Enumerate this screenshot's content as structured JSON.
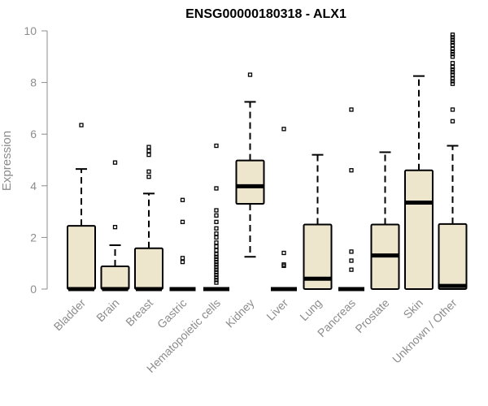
{
  "chart_data": {
    "type": "boxplot",
    "title": "ENSG00000180318 - ALX1",
    "ylabel": "Expression",
    "xlabel": "",
    "ylim": [
      0,
      10
    ],
    "yticks": [
      0,
      2,
      4,
      6,
      8,
      10
    ],
    "box_fill": "#ede6cd",
    "stroke_color": "#000000",
    "axis_color": "#8c8c8c",
    "categories": [
      "Bladder",
      "Brain",
      "Breast",
      "Gastric",
      "Hematopoietic cells",
      "Kidney",
      "Liver",
      "Lung",
      "Pancreas",
      "Prostate",
      "Skin",
      "Unknown / Other"
    ],
    "boxes": [
      {
        "name": "Bladder",
        "q1": 0,
        "median": 0,
        "q3": 2.45,
        "whisker_low": 0,
        "whisker_high": 4.65,
        "outliers": [
          6.35
        ]
      },
      {
        "name": "Brain",
        "q1": 0,
        "median": 0,
        "q3": 0.88,
        "whisker_low": 0,
        "whisker_high": 1.7,
        "outliers": [
          2.4,
          4.9
        ]
      },
      {
        "name": "Breast",
        "q1": 0,
        "median": 0,
        "q3": 1.58,
        "whisker_low": 0,
        "whisker_high": 3.7,
        "outliers": [
          4.35,
          4.55,
          5.2,
          5.35,
          5.5
        ]
      },
      {
        "name": "Gastric",
        "q1": 0,
        "median": 0,
        "q3": 0,
        "whisker_low": 0,
        "whisker_high": 0,
        "outliers": [
          1.05,
          1.2,
          2.6,
          3.45
        ]
      },
      {
        "name": "Hematopoietic cells",
        "q1": 0,
        "median": 0,
        "q3": 0,
        "whisker_low": 0,
        "whisker_high": 0,
        "outliers": [
          0.25,
          0.35,
          0.45,
          0.55,
          0.65,
          0.75,
          0.85,
          0.95,
          1.05,
          1.15,
          1.25,
          1.35,
          1.5,
          1.65,
          1.8,
          2.0,
          2.15,
          2.35,
          2.6,
          2.85,
          3.05,
          3.9,
          5.55
        ]
      },
      {
        "name": "Kidney",
        "q1": 3.3,
        "median": 3.98,
        "q3": 4.98,
        "whisker_low": 1.25,
        "whisker_high": 7.25,
        "outliers": [
          8.3
        ]
      },
      {
        "name": "Liver",
        "q1": 0,
        "median": 0,
        "q3": 0,
        "whisker_low": 0,
        "whisker_high": 0,
        "outliers": [
          0.9,
          0.95,
          1.4,
          6.2
        ]
      },
      {
        "name": "Lung",
        "q1": 0,
        "median": 0.4,
        "q3": 2.5,
        "whisker_low": 0,
        "whisker_high": 5.2,
        "outliers": []
      },
      {
        "name": "Pancreas",
        "q1": 0,
        "median": 0,
        "q3": 0,
        "whisker_low": 0,
        "whisker_high": 0,
        "outliers": [
          0.75,
          1.1,
          1.45,
          4.6,
          6.95
        ]
      },
      {
        "name": "Prostate",
        "q1": 0,
        "median": 1.3,
        "q3": 2.5,
        "whisker_low": 0,
        "whisker_high": 5.3,
        "outliers": []
      },
      {
        "name": "Skin",
        "q1": 0,
        "median": 3.35,
        "q3": 4.6,
        "whisker_low": 0,
        "whisker_high": 8.25,
        "outliers": []
      },
      {
        "name": "Unknown / Other",
        "q1": 0,
        "median": 0.12,
        "q3": 2.52,
        "whisker_low": 0,
        "whisker_high": 5.55,
        "outliers": [
          6.5,
          6.95,
          7.95,
          8.05,
          8.15,
          8.3,
          8.4,
          8.5,
          8.6,
          8.75,
          9.0,
          9.1,
          9.2,
          9.3,
          9.45,
          9.55,
          9.65,
          9.75,
          9.85
        ]
      }
    ]
  }
}
